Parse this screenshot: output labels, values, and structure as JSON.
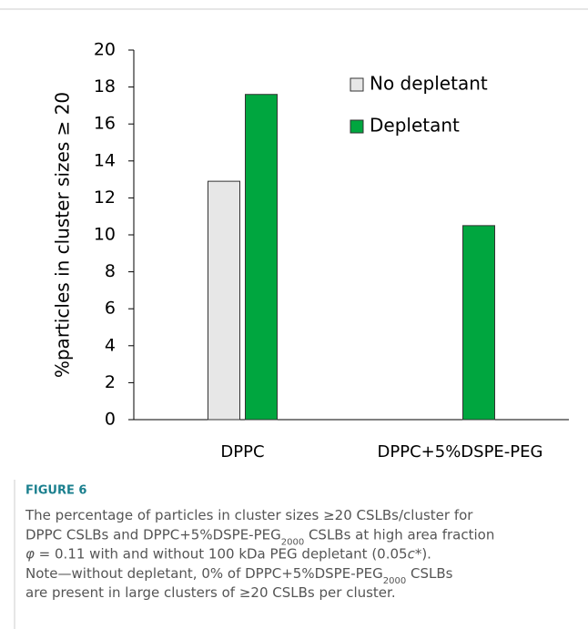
{
  "chart_data": {
    "type": "bar",
    "y_label": "%particles in cluster sizes ≥ 20",
    "categories": [
      "DPPC",
      "DPPC+5%DSPE-PEG"
    ],
    "series": [
      {
        "name": "No depletant",
        "color": "#e7e7e7",
        "values": [
          12.9,
          0
        ]
      },
      {
        "name": "Depletant",
        "color": "#00a63f",
        "values": [
          17.6,
          10.5
        ]
      }
    ],
    "ylim": [
      0,
      20
    ],
    "yticks": [
      0,
      2,
      4,
      6,
      8,
      10,
      12,
      14,
      16,
      18,
      20
    ],
    "legend": "upper-right"
  },
  "figure_label": "FIGURE 6",
  "caption": [
    [
      {
        "text": "The percentage of particles in cluster sizes ≥20 CSLBs/cluster for"
      }
    ],
    [
      {
        "text": "DPPC CSLBs and DPPC+5%DSPE-PEG"
      },
      {
        "text": "2000",
        "style": "sub"
      },
      {
        "text": " CSLBs at high area fraction"
      }
    ],
    [
      {
        "text": "φ",
        "style": "italic"
      },
      {
        "text": " = 0.11 with and without 100 kDa PEG depletant (0.05"
      },
      {
        "text": "c",
        "style": "italic"
      },
      {
        "text": "*)."
      }
    ],
    [
      {
        "text": "Note—without depletant, 0% of DPPC+5%DSPE-PEG"
      },
      {
        "text": "2000",
        "style": "sub"
      },
      {
        "text": " CSLBs"
      }
    ],
    [
      {
        "text": "are present in large clusters of ≥20 CSLBs per cluster."
      }
    ]
  ]
}
